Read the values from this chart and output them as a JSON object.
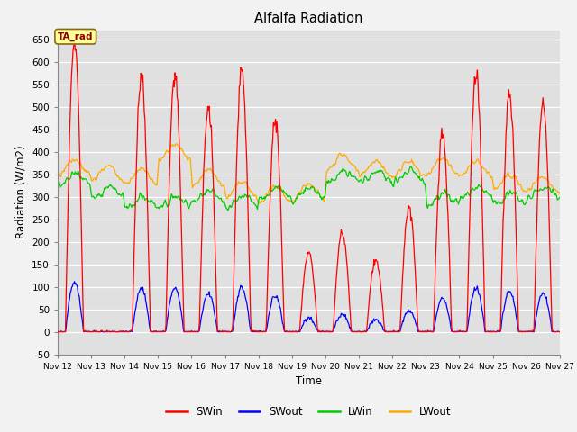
{
  "title": "Alfalfa Radiation",
  "xlabel": "Time",
  "ylabel": "Radiation (W/m2)",
  "ylim": [
    -50,
    670
  ],
  "yticks": [
    -50,
    0,
    50,
    100,
    150,
    200,
    250,
    300,
    350,
    400,
    450,
    500,
    550,
    600,
    650
  ],
  "fig_bg_color": "#f2f2f2",
  "plot_bg_color": "#e0e0e0",
  "legend_entries": [
    "SWin",
    "SWout",
    "LWin",
    "LWout"
  ],
  "legend_colors": [
    "#ff0000",
    "#0000ff",
    "#00cc00",
    "#ffaa00"
  ],
  "annotation_text": "TA_rad",
  "n_days": 15,
  "start_day": 12,
  "day_peaks_SWin": [
    650,
    5,
    570,
    580,
    500,
    580,
    470,
    175,
    220,
    160,
    280,
    440,
    575,
    530,
    510
  ],
  "day_lwIn_mean": [
    340,
    308,
    288,
    288,
    300,
    288,
    308,
    305,
    345,
    345,
    345,
    295,
    310,
    295,
    308
  ],
  "day_lwOut_mean": [
    365,
    352,
    345,
    398,
    340,
    315,
    305,
    310,
    375,
    362,
    362,
    367,
    362,
    332,
    328
  ]
}
